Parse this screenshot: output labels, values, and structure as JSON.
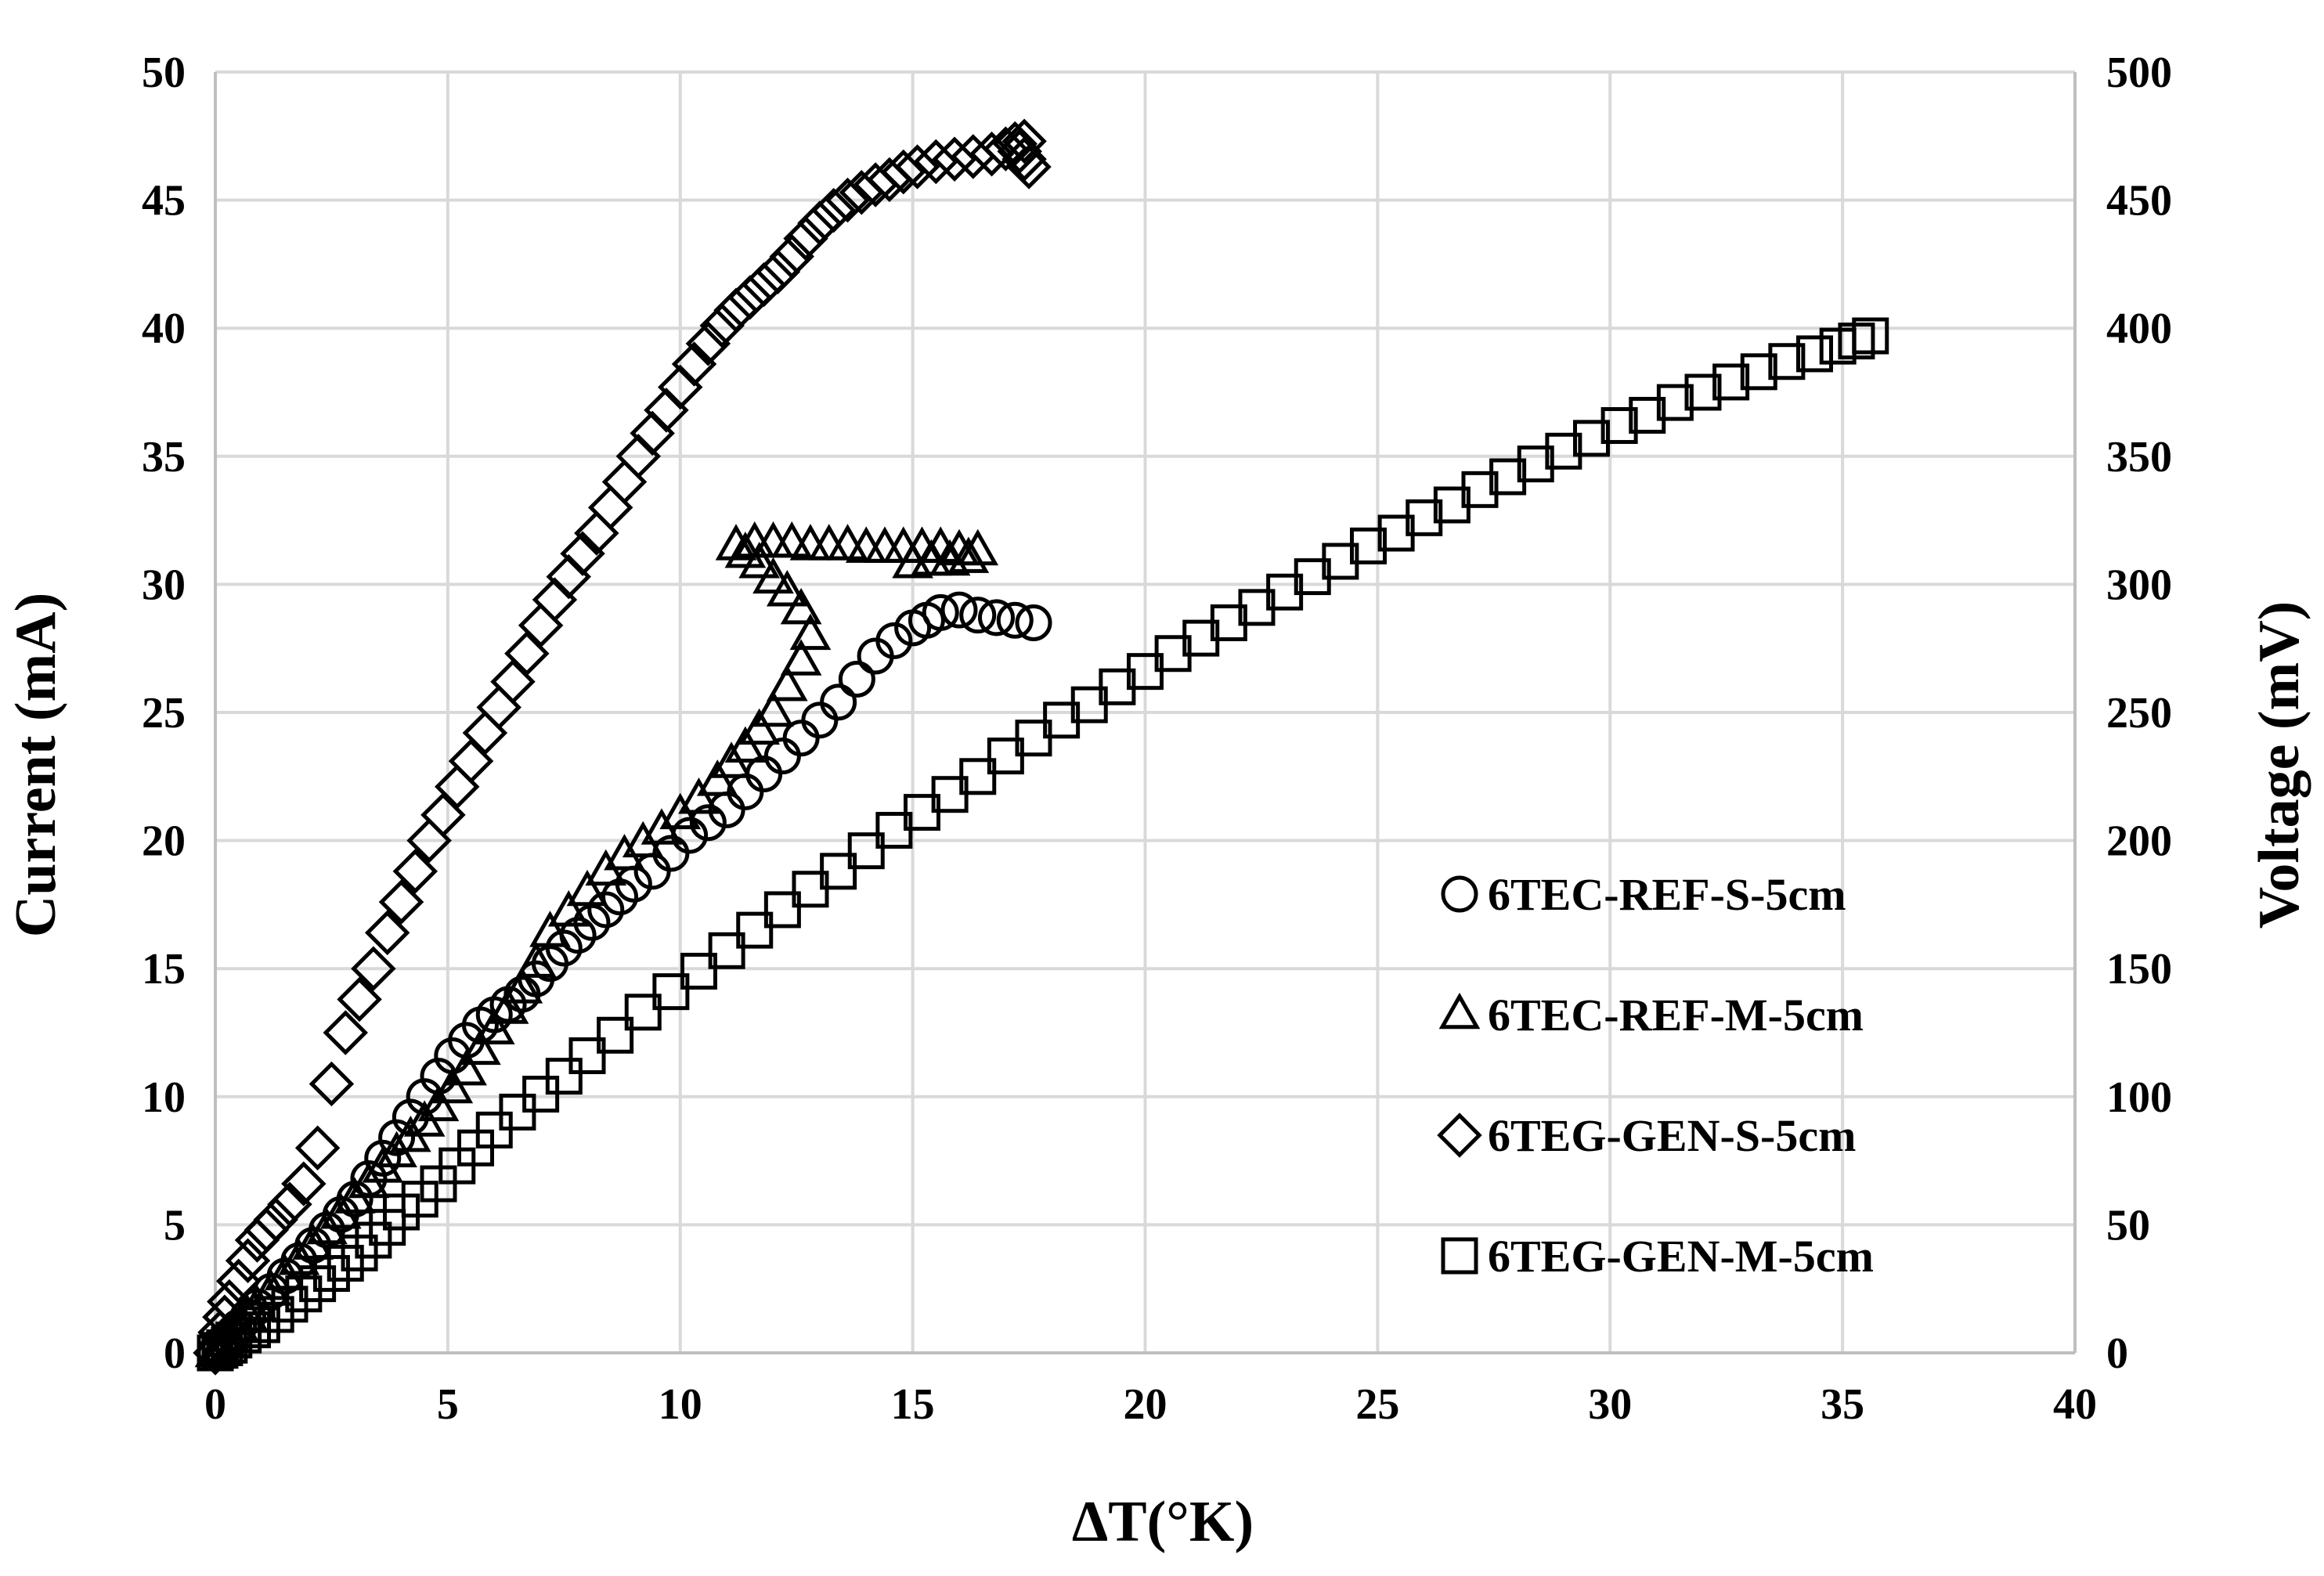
{
  "chart_data": {
    "type": "scatter",
    "xlabel": "ΔT(°K)",
    "ylabel": "Current (mA)",
    "y2label": "Voltage (mV)",
    "xlim": [
      0,
      40
    ],
    "ylim": [
      0,
      50
    ],
    "y2lim": [
      0,
      500
    ],
    "xticks": [
      "0",
      "5",
      "10",
      "15",
      "20",
      "25",
      "30",
      "35",
      "40"
    ],
    "yticks": [
      "0",
      "5",
      "10",
      "15",
      "20",
      "25",
      "30",
      "35",
      "40",
      "45",
      "50"
    ],
    "y2ticks": [
      "0",
      "50",
      "100",
      "150",
      "200",
      "250",
      "300",
      "350",
      "400",
      "450",
      "500"
    ],
    "grid": true,
    "legend_position": "bottom-right",
    "series": [
      {
        "name": "6TEC-REF-S-5cm",
        "marker": "circle",
        "axis": "left",
        "x": [
          0,
          0.1,
          0.2,
          0.3,
          0.4,
          0.5,
          0.7,
          0.9,
          1.2,
          1.5,
          1.8,
          2.1,
          2.4,
          2.7,
          3.0,
          3.3,
          3.6,
          3.9,
          4.2,
          4.5,
          4.8,
          5.1,
          5.4,
          5.7,
          6.0,
          6.3,
          6.6,
          6.9,
          7.2,
          7.5,
          7.8,
          8.1,
          8.4,
          8.7,
          9.0,
          9.4,
          9.8,
          10.2,
          10.6,
          11.0,
          11.4,
          11.8,
          12.2,
          12.6,
          13.0,
          13.4,
          13.8,
          14.2,
          14.6,
          15.0,
          15.3,
          15.6,
          16.0,
          16.4,
          16.8,
          17.2,
          17.6
        ],
        "y": [
          0,
          0.2,
          0.4,
          0.6,
          0.8,
          1.0,
          1.4,
          1.8,
          2.4,
          3.0,
          3.6,
          4.2,
          4.8,
          5.4,
          6.0,
          6.8,
          7.6,
          8.4,
          9.2,
          10.0,
          10.8,
          11.6,
          12.2,
          12.8,
          13.2,
          13.6,
          14.0,
          14.6,
          15.2,
          15.8,
          16.3,
          16.8,
          17.3,
          17.8,
          18.3,
          18.8,
          19.5,
          20.2,
          20.7,
          21.2,
          21.9,
          22.6,
          23.3,
          24.0,
          24.7,
          25.4,
          26.3,
          27.2,
          27.8,
          28.3,
          28.6,
          28.9,
          29.0,
          28.8,
          28.7,
          28.6,
          28.5
        ]
      },
      {
        "name": "6TEC-REF-M-5cm",
        "marker": "triangle",
        "axis": "left",
        "x": [
          0,
          0.1,
          0.2,
          0.3,
          0.5,
          0.7,
          0.9,
          1.2,
          1.5,
          1.8,
          2.1,
          2.4,
          2.7,
          3.0,
          3.3,
          3.6,
          3.9,
          4.2,
          4.5,
          4.8,
          5.1,
          5.4,
          5.7,
          6.0,
          6.3,
          6.6,
          6.9,
          7.2,
          7.6,
          8.0,
          8.4,
          8.8,
          9.2,
          9.6,
          10.0,
          10.4,
          10.8,
          11.1,
          11.4,
          11.7,
          12.0,
          12.3,
          12.6,
          12.8,
          12.6,
          12.3,
          12.0,
          11.7,
          11.4,
          11.2,
          11.6,
          12.0,
          12.4,
          12.8,
          13.2,
          13.6,
          14.0,
          14.4,
          14.8,
          15.2,
          15.6,
          16.0,
          16.4,
          16.2,
          15.8,
          15.4,
          15.0
        ],
        "y": [
          0,
          0.2,
          0.4,
          0.6,
          1.0,
          1.4,
          1.8,
          2.4,
          3.0,
          3.6,
          4.2,
          4.8,
          5.4,
          6.0,
          6.6,
          7.2,
          7.8,
          8.4,
          9.0,
          9.6,
          10.3,
          11.0,
          11.8,
          12.6,
          13.4,
          14.2,
          15.2,
          16.4,
          17.2,
          18.0,
          18.8,
          19.4,
          19.9,
          20.4,
          21.0,
          21.6,
          22.3,
          23.0,
          23.6,
          24.3,
          25.0,
          26.0,
          27.0,
          28.0,
          29.0,
          29.7,
          30.2,
          30.8,
          31.2,
          31.5,
          31.6,
          31.6,
          31.6,
          31.5,
          31.5,
          31.5,
          31.4,
          31.4,
          31.4,
          31.4,
          31.4,
          31.3,
          31.3,
          31.0,
          30.9,
          30.9,
          30.8
        ]
      },
      {
        "name": "6TEG-GEN-S-5cm",
        "marker": "diamond",
        "axis": "left",
        "x": [
          0,
          0.1,
          0.2,
          0.3,
          0.5,
          0.7,
          0.9,
          1.1,
          1.3,
          1.6,
          1.9,
          2.2,
          2.5,
          2.8,
          3.1,
          3.4,
          3.7,
          4.0,
          4.3,
          4.6,
          4.9,
          5.2,
          5.5,
          5.8,
          6.1,
          6.4,
          6.7,
          7.0,
          7.3,
          7.6,
          7.9,
          8.2,
          8.5,
          8.8,
          9.1,
          9.4,
          9.7,
          10.0,
          10.3,
          10.6,
          10.9,
          11.2,
          11.5,
          11.8,
          12.1,
          12.4,
          12.7,
          13.0,
          13.3,
          13.6,
          13.9,
          14.2,
          14.5,
          14.8,
          15.1,
          15.5,
          15.9,
          16.3,
          16.7,
          17.0,
          17.2,
          17.4,
          17.3,
          17.4,
          17.5
        ],
        "y": [
          0,
          0.8,
          1.4,
          2.0,
          2.8,
          3.6,
          4.4,
          4.8,
          5.2,
          5.8,
          6.6,
          8.0,
          10.5,
          12.5,
          13.8,
          15.0,
          16.4,
          17.6,
          18.8,
          20.0,
          21.0,
          22.1,
          23.1,
          24.2,
          25.2,
          26.2,
          27.3,
          28.4,
          29.4,
          30.3,
          31.2,
          32.0,
          33.0,
          34.0,
          35.0,
          35.9,
          36.8,
          37.7,
          38.6,
          39.4,
          40.1,
          40.7,
          41.2,
          41.7,
          42.2,
          42.8,
          43.5,
          44.1,
          44.6,
          45.0,
          45.3,
          45.6,
          45.8,
          46.1,
          46.3,
          46.5,
          46.6,
          46.7,
          46.8,
          47.0,
          47.2,
          47.3,
          46.9,
          46.6,
          46.3
        ]
      },
      {
        "name": "6TEG-GEN-M-5cm",
        "marker": "square",
        "axis": "left",
        "x": [
          0,
          0.1,
          0.2,
          0.3,
          0.4,
          0.6,
          0.8,
          1.0,
          1.3,
          1.6,
          1.9,
          2.2,
          2.5,
          2.8,
          3.1,
          3.4,
          3.7,
          4.0,
          4.4,
          4.8,
          5.2,
          5.6,
          6.0,
          6.5,
          7.0,
          7.5,
          8.0,
          8.6,
          9.2,
          9.8,
          10.4,
          11.0,
          11.6,
          12.2,
          12.8,
          13.4,
          14.0,
          14.6,
          15.2,
          15.8,
          16.4,
          17.0,
          17.6,
          18.2,
          18.8,
          19.4,
          20.0,
          20.6,
          21.2,
          21.8,
          22.4,
          23.0,
          23.6,
          24.2,
          24.8,
          25.4,
          26.0,
          26.6,
          27.2,
          27.8,
          28.4,
          29.0,
          29.6,
          30.2,
          30.8,
          31.4,
          32.0,
          32.6,
          33.2,
          33.8,
          34.4,
          34.9,
          35.3,
          35.6
        ],
        "y": [
          0,
          0.1,
          0.2,
          0.3,
          0.5,
          0.7,
          0.9,
          1.1,
          1.5,
          1.9,
          2.3,
          2.7,
          3.1,
          3.5,
          3.9,
          4.4,
          4.9,
          5.5,
          6.0,
          6.6,
          7.3,
          8.0,
          8.7,
          9.4,
          10.1,
          10.8,
          11.6,
          12.4,
          13.3,
          14.1,
          14.9,
          15.7,
          16.5,
          17.3,
          18.1,
          18.8,
          19.6,
          20.4,
          21.1,
          21.8,
          22.5,
          23.3,
          24.0,
          24.7,
          25.3,
          26.0,
          26.6,
          27.3,
          27.9,
          28.5,
          29.1,
          29.7,
          30.3,
          30.9,
          31.5,
          32.0,
          32.6,
          33.1,
          33.7,
          34.2,
          34.7,
          35.2,
          35.7,
          36.2,
          36.6,
          37.1,
          37.5,
          37.9,
          38.3,
          38.7,
          39.0,
          39.3,
          39.5,
          39.7
        ]
      }
    ]
  }
}
